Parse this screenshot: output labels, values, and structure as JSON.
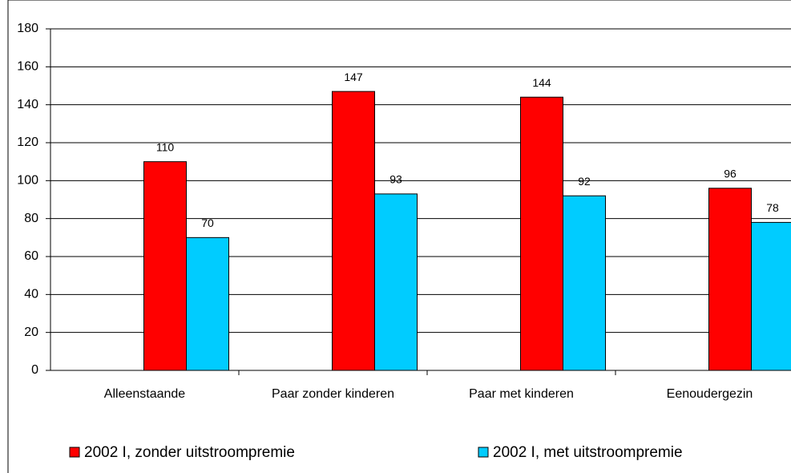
{
  "chart_data": {
    "type": "bar",
    "categories": [
      "Alleenstaande",
      "Paar zonder kinderen",
      "Paar met kinderen",
      "Eenoudergezin"
    ],
    "series": [
      {
        "name": "2002 I, zonder uitstroompremie",
        "color": "#ff0000",
        "values": [
          110,
          147,
          144,
          96
        ]
      },
      {
        "name": "2002 I, met uitstroompremie",
        "color": "#00ccff",
        "values": [
          70,
          93,
          92,
          78
        ]
      }
    ],
    "ylim": [
      0,
      180
    ],
    "yticks": [
      0,
      20,
      40,
      60,
      80,
      100,
      120,
      140,
      160,
      180
    ],
    "grid": true,
    "legend": "bottom"
  }
}
